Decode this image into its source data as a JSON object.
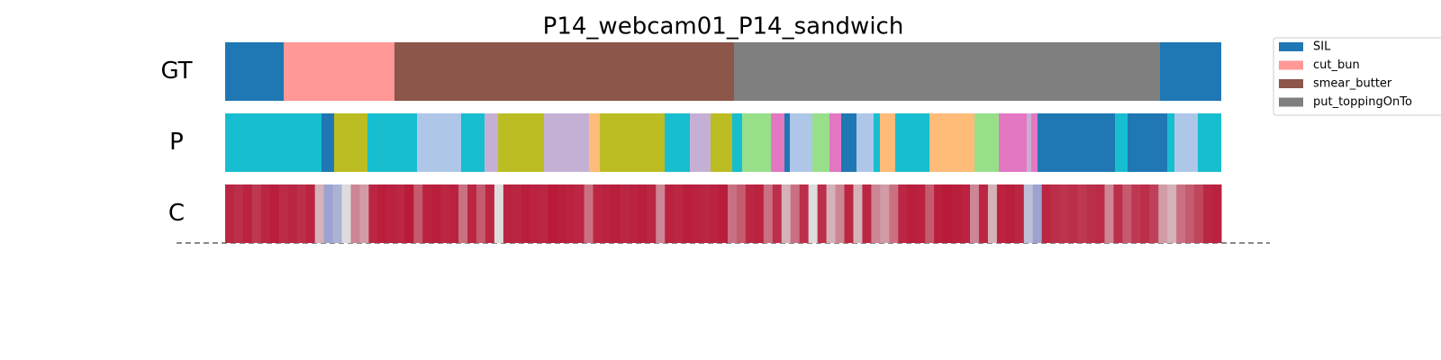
{
  "chart_data": {
    "type": "segmentation",
    "title": "P14_webcam01_P14_sandwich",
    "rows": [
      "GT",
      "P",
      "C"
    ],
    "xlim": [
      0,
      1106
    ],
    "clim": [
      0,
      1
    ],
    "legend": [
      {
        "name": "SIL",
        "color": "#1f77b4"
      },
      {
        "name": "cut_bun",
        "color": "#ff9896"
      },
      {
        "name": "smear_butter",
        "color": "#8c564b"
      },
      {
        "name": "put_toppingOnTo",
        "color": "#7f7f7f"
      }
    ],
    "gt": [
      {
        "label": 0,
        "start": 0,
        "end": 65
      },
      {
        "label": 1,
        "start": 65,
        "end": 188
      },
      {
        "label": 2,
        "start": 188,
        "end": 565
      },
      {
        "label": 3,
        "start": 565,
        "end": 1038
      },
      {
        "label": 0,
        "start": 1038,
        "end": 1106
      }
    ],
    "pred": [
      {
        "color": "#17becf",
        "start": 0,
        "end": 107
      },
      {
        "color": "#1f77b4",
        "start": 107,
        "end": 121
      },
      {
        "color": "#bcbd22",
        "start": 121,
        "end": 158
      },
      {
        "color": "#17becf",
        "start": 158,
        "end": 213
      },
      {
        "color": "#aec7e8",
        "start": 213,
        "end": 262
      },
      {
        "color": "#17becf",
        "start": 262,
        "end": 288
      },
      {
        "color": "#c5b0d5",
        "start": 288,
        "end": 303
      },
      {
        "color": "#bcbd22",
        "start": 303,
        "end": 354
      },
      {
        "color": "#c5b0d5",
        "start": 354,
        "end": 404
      },
      {
        "color": "#ffbb78",
        "start": 404,
        "end": 416
      },
      {
        "color": "#bcbd22",
        "start": 416,
        "end": 488
      },
      {
        "color": "#17becf",
        "start": 488,
        "end": 516
      },
      {
        "color": "#c5b0d5",
        "start": 516,
        "end": 539
      },
      {
        "color": "#bcbd22",
        "start": 539,
        "end": 563
      },
      {
        "color": "#17becf",
        "start": 563,
        "end": 574
      },
      {
        "color": "#98df8a",
        "start": 574,
        "end": 606
      },
      {
        "color": "#e377c2",
        "start": 606,
        "end": 621
      },
      {
        "color": "#1f77b4",
        "start": 621,
        "end": 627
      },
      {
        "color": "#aec7e8",
        "start": 627,
        "end": 652
      },
      {
        "color": "#98df8a",
        "start": 652,
        "end": 671
      },
      {
        "color": "#e377c2",
        "start": 671,
        "end": 684
      },
      {
        "color": "#1f77b4",
        "start": 684,
        "end": 701
      },
      {
        "color": "#aec7e8",
        "start": 701,
        "end": 720
      },
      {
        "color": "#17becf",
        "start": 720,
        "end": 727
      },
      {
        "color": "#ffbb78",
        "start": 727,
        "end": 744
      },
      {
        "color": "#17becf",
        "start": 744,
        "end": 782
      },
      {
        "color": "#ffbb78",
        "start": 782,
        "end": 832
      },
      {
        "color": "#98df8a",
        "start": 832,
        "end": 859
      },
      {
        "color": "#e377c2",
        "start": 859,
        "end": 890
      },
      {
        "color": "#c5b0d5",
        "start": 890,
        "end": 895
      },
      {
        "color": "#e377c2",
        "start": 895,
        "end": 902
      },
      {
        "color": "#1f77b4",
        "start": 902,
        "end": 988
      },
      {
        "color": "#17becf",
        "start": 988,
        "end": 1002
      },
      {
        "color": "#1f77b4",
        "start": 1002,
        "end": 1046
      },
      {
        "color": "#17becf",
        "start": 1046,
        "end": 1054
      },
      {
        "color": "#aec7e8",
        "start": 1054,
        "end": 1080
      },
      {
        "color": "#17becf",
        "start": 1080,
        "end": 1106
      }
    ],
    "confidence": [
      0.92,
      0.9,
      0.93,
      0.88,
      0.92,
      0.94,
      0.91,
      0.92,
      0.9,
      0.93,
      0.6,
      0.3,
      0.35,
      0.5,
      0.7,
      0.65,
      0.92,
      0.94,
      0.93,
      0.92,
      0.95,
      0.8,
      0.93,
      0.94,
      0.92,
      0.93,
      0.75,
      0.92,
      0.8,
      0.92,
      0.5,
      0.93,
      0.92,
      0.94,
      0.93,
      0.92,
      0.95,
      0.94,
      0.93,
      0.92,
      0.75,
      0.92,
      0.93,
      0.94,
      0.92,
      0.93,
      0.94,
      0.92,
      0.7,
      0.93,
      0.92,
      0.94,
      0.93,
      0.92,
      0.93,
      0.94,
      0.75,
      0.8,
      0.92,
      0.93,
      0.75,
      0.9,
      0.6,
      0.75,
      0.9,
      0.5,
      0.9,
      0.6,
      0.7,
      0.92,
      0.6,
      0.92,
      0.7,
      0.65,
      0.75,
      0.92,
      0.94,
      0.93,
      0.8,
      0.94,
      0.95,
      0.94,
      0.93,
      0.7,
      0.92,
      0.6,
      0.93,
      0.94,
      0.92,
      0.4,
      0.3,
      0.92,
      0.9,
      0.89,
      0.9,
      0.88,
      0.9,
      0.91,
      0.7,
      0.9,
      0.8,
      0.88,
      0.9,
      0.86,
      0.65,
      0.6,
      0.75,
      0.8,
      0.85,
      0.92,
      0.93
    ]
  }
}
